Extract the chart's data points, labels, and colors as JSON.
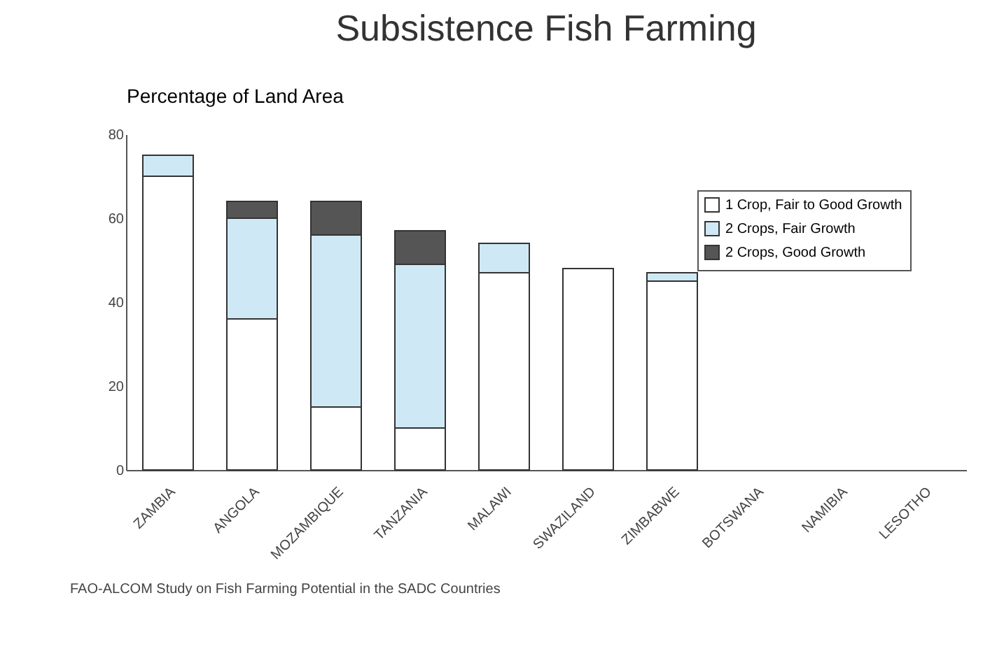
{
  "chart_data": {
    "type": "bar",
    "title": "Subsistence Fish Farming",
    "ylabel": "Percentage of Land Area",
    "categories": [
      "ZAMBIA",
      "ANGOLA",
      "MOZAMBIQUE",
      "TANZANIA",
      "MALAWI",
      "SWAZILAND",
      "ZIMBABWE",
      "BOTSWANA",
      "NAMIBIA",
      "LESOTHO"
    ],
    "stacked": true,
    "series": [
      {
        "name": "1 Crop, Fair to Good Growth",
        "color": "#ffffff",
        "values": [
          70,
          36,
          15,
          10,
          47,
          48,
          45,
          0,
          0,
          0
        ]
      },
      {
        "name": "2 Crops, Fair Growth",
        "color": "#cfe8f5",
        "values": [
          5,
          24,
          41,
          39,
          7,
          0,
          2,
          0,
          0,
          0
        ]
      },
      {
        "name": "2 Crops, Good Growth",
        "color": "#555555",
        "values": [
          0,
          4,
          8,
          8,
          0,
          0,
          0,
          0,
          0,
          0
        ]
      }
    ],
    "ylim": [
      0,
      80
    ],
    "yticks": [
      0,
      20,
      40,
      60,
      80
    ],
    "grid": false,
    "legend": "right",
    "annotations": [
      "FAO-ALCOM Study on Fish Farming Potential in the SADC Countries"
    ]
  }
}
